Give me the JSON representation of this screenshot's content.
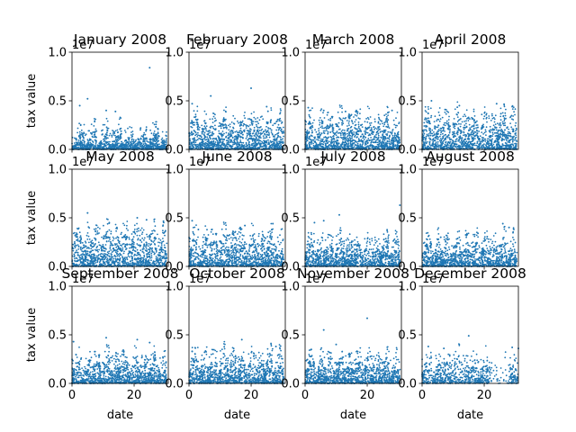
{
  "chart_data": {
    "type": "scatter",
    "layout": "3x4 grid of subplots",
    "xlabel": "date",
    "ylabel": "tax value",
    "y_offset_text": "1e7",
    "xlim": [
      0,
      31
    ],
    "ylim": [
      0,
      1.0
    ],
    "x_ticks": [
      0,
      20
    ],
    "y_ticks": [
      0.0,
      0.5,
      1.0
    ],
    "y_tick_labels": [
      "0.0",
      "0.5",
      "1.0"
    ],
    "marker_color": "#1f77b4",
    "grid": false,
    "legend": "none",
    "panels": [
      {
        "title": "January 2008",
        "n_points": 1200,
        "base": [
          0.05,
          0.1,
          0.15,
          0.2
        ],
        "outliers": [
          [
            2.5,
            0.45
          ],
          [
            5,
            0.52
          ],
          [
            11,
            0.4
          ],
          [
            14,
            0.39
          ],
          [
            25,
            0.84
          ]
        ]
      },
      {
        "title": "February 2008",
        "n_points": 1200,
        "base": [
          0.18,
          0.25,
          0.3
        ],
        "outliers": [
          [
            1,
            0.47
          ],
          [
            7,
            0.55
          ],
          [
            20,
            0.63
          ],
          [
            25,
            0.44
          ]
        ]
      },
      {
        "title": "March 2008",
        "n_points": 1200,
        "base": [
          0.2,
          0.25,
          0.3
        ],
        "outliers": [
          [
            1,
            0.43
          ],
          [
            6,
            0.4
          ],
          [
            13,
            0.39
          ],
          [
            28,
            0.4
          ]
        ]
      },
      {
        "title": "April 2008",
        "n_points": 1200,
        "base": [
          0.2,
          0.28,
          0.33
        ],
        "outliers": [
          [
            3,
            0.5
          ],
          [
            12,
            0.45
          ],
          [
            24,
            0.47
          ],
          [
            29,
            0.44
          ]
        ]
      },
      {
        "title": "May 2008",
        "n_points": 1200,
        "base": [
          0.25,
          0.3,
          0.35
        ],
        "outliers": [
          [
            5,
            0.55
          ],
          [
            12,
            0.45
          ],
          [
            21,
            0.5
          ],
          [
            24,
            0.48
          ]
        ]
      },
      {
        "title": "June 2008",
        "n_points": 1200,
        "base": [
          0.2,
          0.25,
          0.3
        ],
        "outliers": [
          [
            1,
            0.47
          ],
          [
            3,
            0.38
          ],
          [
            18,
            0.42
          ],
          [
            27,
            0.44
          ]
        ]
      },
      {
        "title": "July 2008",
        "n_points": 1200,
        "base": [
          0.15,
          0.2,
          0.25
        ],
        "outliers": [
          [
            3,
            0.45
          ],
          [
            6,
            0.47
          ],
          [
            11,
            0.53
          ],
          [
            30.5,
            0.63
          ]
        ]
      },
      {
        "title": "August 2008",
        "n_points": 1200,
        "base": [
          0.15,
          0.2,
          0.28
        ],
        "outliers": [
          [
            6,
            0.3
          ],
          [
            18,
            0.34
          ],
          [
            26,
            0.44
          ],
          [
            28,
            0.4
          ]
        ]
      },
      {
        "title": "September 2008",
        "n_points": 1200,
        "base": [
          0.15,
          0.2,
          0.25
        ],
        "outliers": [
          [
            0.5,
            0.43
          ],
          [
            11,
            0.47
          ],
          [
            21,
            0.45
          ],
          [
            25,
            0.42
          ]
        ]
      },
      {
        "title": "October 2008",
        "n_points": 1200,
        "base": [
          0.15,
          0.22,
          0.28
        ],
        "outliers": [
          [
            1,
            0.33
          ],
          [
            5,
            0.32
          ],
          [
            17,
            0.45
          ],
          [
            28,
            0.38
          ]
        ]
      },
      {
        "title": "November 2008",
        "n_points": 1200,
        "base": [
          0.15,
          0.2,
          0.25
        ],
        "outliers": [
          [
            2,
            0.35
          ],
          [
            6,
            0.55
          ],
          [
            10,
            0.4
          ],
          [
            20,
            0.67
          ]
        ]
      },
      {
        "title": "December 2008",
        "n_points": 900,
        "base": [
          0.15,
          0.2,
          0.25
        ],
        "outliers": [
          [
            2,
            0.38
          ],
          [
            7,
            0.36
          ],
          [
            15,
            0.49
          ],
          [
            29,
            0.37
          ],
          [
            31,
            0.36
          ]
        ]
      }
    ]
  }
}
